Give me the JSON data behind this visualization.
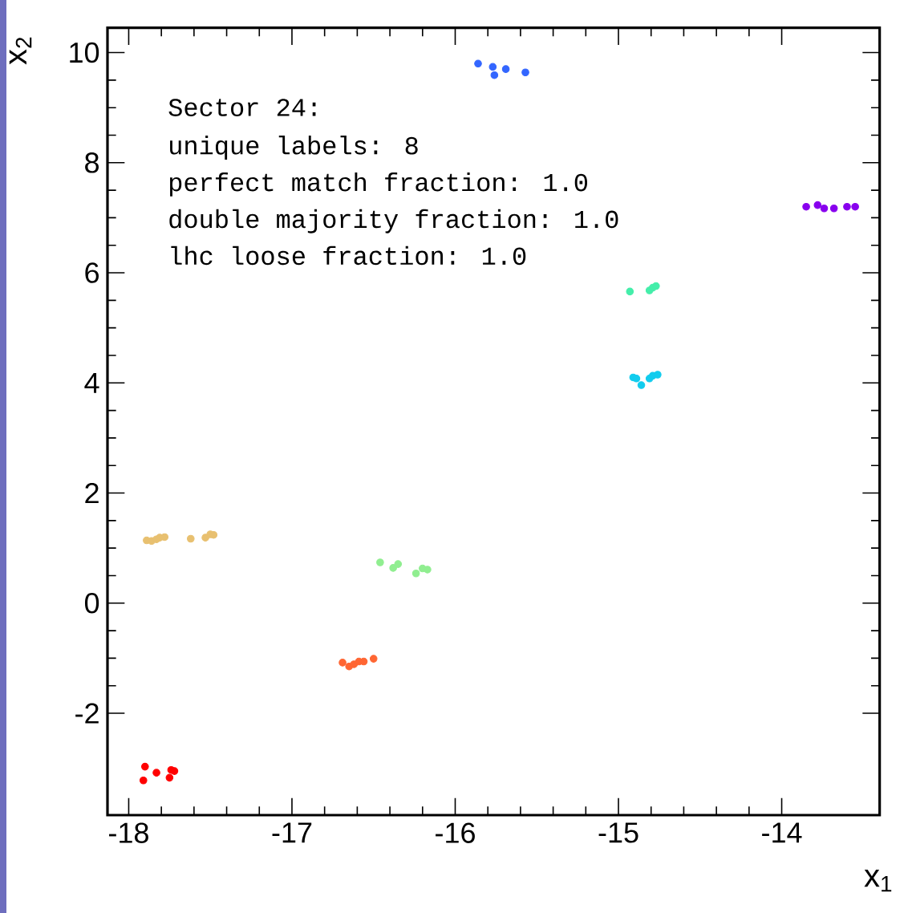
{
  "chart_data": {
    "type": "scatter",
    "xlabel": "x$_{1}$",
    "ylabel": "x$_{2}$",
    "xlim": [
      -18.13,
      -13.4
    ],
    "ylim": [
      -3.85,
      10.45
    ],
    "xticks": [
      -18,
      -17,
      -16,
      -15,
      -14
    ],
    "yticks": [
      -2,
      0,
      2,
      4,
      6,
      8,
      10
    ],
    "marker": "circle",
    "annotations": [
      "Sector 24:",
      "unique labels: 8",
      "perfect match fraction: 1.0",
      "double majority fraction: 1.0",
      "lhc loose fraction: 1.0"
    ],
    "series": [
      {
        "color": "#ff0000",
        "x": [
          -17.9,
          -17.91,
          -17.84,
          -17.83,
          -17.75,
          -17.74,
          -17.72
        ],
        "values": [
          -2.97,
          -3.22,
          null,
          -3.08,
          -3.17,
          -3.03,
          -3.05
        ]
      },
      {
        "color": "#e8c070",
        "x": [
          -17.89,
          -17.86,
          -17.83,
          -17.81,
          -17.78,
          -17.62,
          -17.53,
          -17.5,
          -17.48
        ],
        "values": [
          1.14,
          1.13,
          1.16,
          1.19,
          1.2,
          1.17,
          1.19,
          1.25,
          1.24
        ]
      },
      {
        "color": "#ff6633",
        "x": [
          -16.69,
          -16.65,
          -16.62,
          -16.59,
          -16.56,
          -16.5
        ],
        "values": [
          -1.08,
          -1.15,
          -1.11,
          -1.06,
          -1.06,
          -1.01
        ]
      },
      {
        "color": "#90ee90",
        "x": [
          -16.46,
          -16.38,
          -16.36,
          -16.35,
          -16.24,
          -16.2,
          -16.17
        ],
        "values": [
          0.74,
          0.64,
          null,
          0.71,
          0.54,
          0.63,
          0.61
        ]
      },
      {
        "color": "#3366ff",
        "x": [
          -15.86,
          -15.77,
          -15.76,
          -15.69,
          -15.57
        ],
        "values": [
          9.8,
          9.74,
          9.59,
          9.7,
          9.64
        ]
      },
      {
        "color": "#44eeaa",
        "x": [
          -14.93,
          -14.81,
          -14.79,
          -14.77
        ],
        "values": [
          5.66,
          5.68,
          5.73,
          5.76
        ]
      },
      {
        "color": "#11ccee",
        "x": [
          -14.91,
          -14.89,
          -14.86,
          -14.81,
          -14.79,
          -14.76
        ],
        "values": [
          4.1,
          4.08,
          3.96,
          4.08,
          4.13,
          4.15
        ]
      },
      {
        "color": "#8800ee",
        "x": [
          -13.85,
          -13.78,
          -13.74,
          -13.68,
          -13.6,
          -13.55
        ],
        "values": [
          7.2,
          7.23,
          7.17,
          7.17,
          7.2,
          7.2
        ]
      }
    ]
  }
}
